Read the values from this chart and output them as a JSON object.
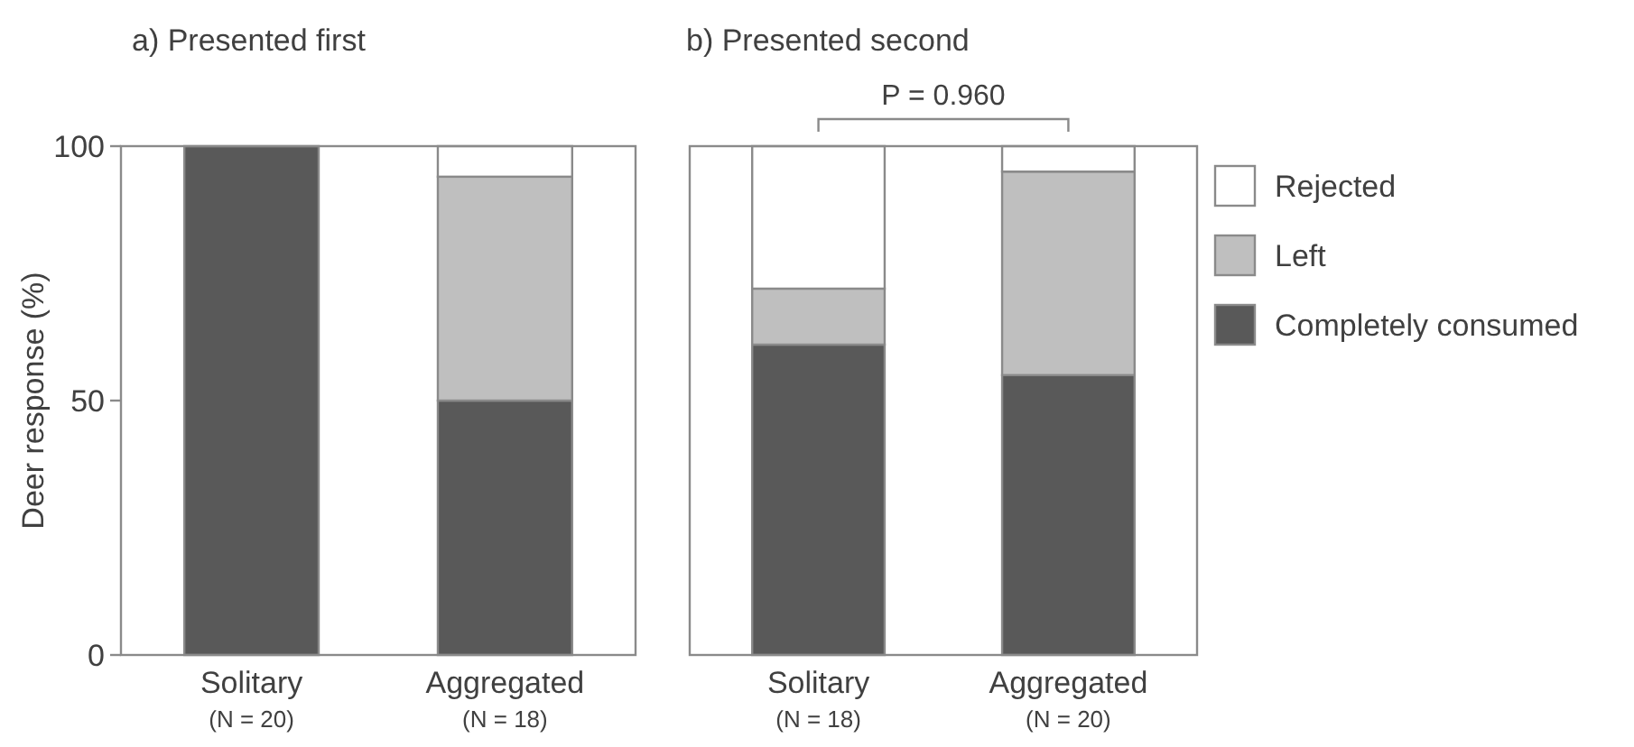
{
  "chart_data": [
    {
      "type": "bar",
      "title": "a) Presented first",
      "ylabel": "Deer response (%)",
      "categories": [
        "Solitary\n(N = 20)",
        "Aggregated\n(N = 18)"
      ],
      "stacked": true,
      "series": [
        {
          "color": "#595959",
          "values": [
            100,
            50
          ]
        },
        {
          "color": "#bfbfbf",
          "values": [
            0,
            44
          ]
        },
        {
          "color": "#ffffff",
          "values": [
            0,
            6
          ]
        }
      ],
      "ylim": [
        0,
        100
      ],
      "yticks": [
        0,
        50,
        100
      ]
    },
    {
      "type": "bar",
      "title": "b) Presented second",
      "categories": [
        "Solitary\n(N = 18)",
        "Aggregated\n(N = 20)"
      ],
      "stacked": true,
      "series": [
        {
          "name": "Completely consumed",
          "color": "#595959",
          "values": [
            61,
            55
          ]
        },
        {
          "name": "Left",
          "color": "#bfbfbf",
          "values": [
            11,
            40
          ]
        },
        {
          "name": "Rejected",
          "color": "#ffffff",
          "values": [
            28,
            5
          ]
        }
      ],
      "ylim": [
        0,
        100
      ],
      "yticks": [
        0,
        50,
        100
      ],
      "tick_labels": "x",
      "legend": "right",
      "annotations": [
        "P = 0.960"
      ]
    }
  ]
}
